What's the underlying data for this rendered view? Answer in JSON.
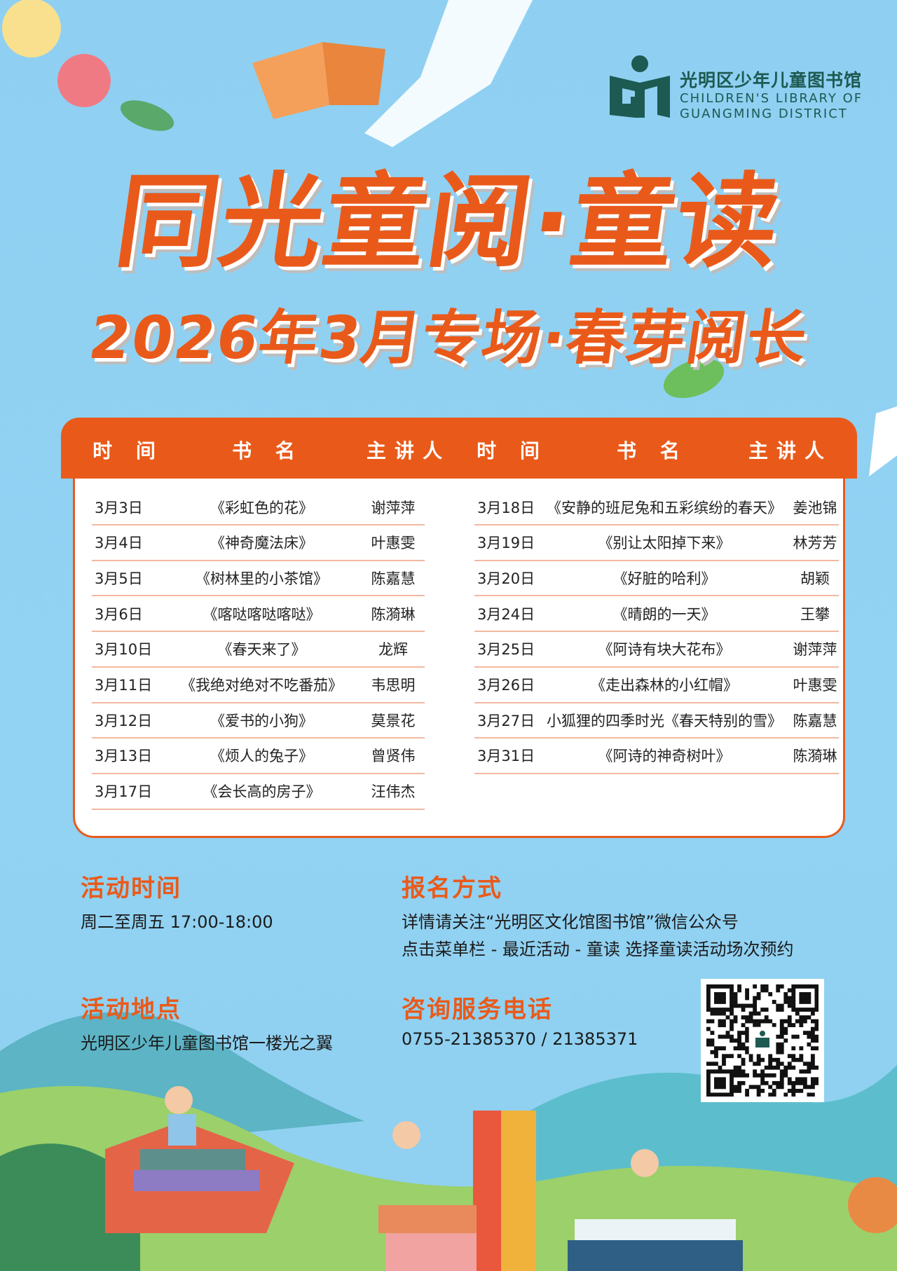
{
  "logo": {
    "name_cn": "光明区少年儿童图书馆",
    "name_en_line1": "CHILDREN'S LIBRARY OF",
    "name_en_line2": "GUANGMING DISTRICT",
    "color": "#1d5a52"
  },
  "title": "同光童阅·童读",
  "subtitle": "2026年3月专场·春芽阅长",
  "accent": "#e95a1a",
  "table": {
    "headers": [
      "时 间",
      "书 名",
      "主讲人",
      "时 间",
      "书 名",
      "主讲人"
    ],
    "left": [
      {
        "date": "3月3日",
        "book": "《彩虹色的花》",
        "speaker": "谢萍萍"
      },
      {
        "date": "3月4日",
        "book": "《神奇魔法床》",
        "speaker": "叶惠雯"
      },
      {
        "date": "3月5日",
        "book": "《树林里的小茶馆》",
        "speaker": "陈嘉慧"
      },
      {
        "date": "3月6日",
        "book": "《喀哒喀哒喀哒》",
        "speaker": "陈漪琳"
      },
      {
        "date": "3月10日",
        "book": "《春天来了》",
        "speaker": "龙辉"
      },
      {
        "date": "3月11日",
        "book": "《我绝对绝对不吃番茄》",
        "speaker": "韦思明"
      },
      {
        "date": "3月12日",
        "book": "《爱书的小狗》",
        "speaker": "莫景花"
      },
      {
        "date": "3月13日",
        "book": "《烦人的兔子》",
        "speaker": "曾贤伟"
      },
      {
        "date": "3月17日",
        "book": "《会长高的房子》",
        "speaker": "汪伟杰"
      }
    ],
    "right": [
      {
        "date": "3月18日",
        "book": "《安静的班尼兔和五彩缤纷的春天》",
        "speaker": "姜池锦"
      },
      {
        "date": "3月19日",
        "book": "《别让太阳掉下来》",
        "speaker": "林芳芳"
      },
      {
        "date": "3月20日",
        "book": "《好脏的哈利》",
        "speaker": "胡颖"
      },
      {
        "date": "3月24日",
        "book": "《晴朗的一天》",
        "speaker": "王攀"
      },
      {
        "date": "3月25日",
        "book": "《阿诗有块大花布》",
        "speaker": "谢萍萍"
      },
      {
        "date": "3月26日",
        "book": "《走出森林的小红帽》",
        "speaker": "叶惠雯"
      },
      {
        "date": "3月27日",
        "book": "小狐狸的四季时光《春天特别的雪》",
        "speaker": "陈嘉慧"
      },
      {
        "date": "3月31日",
        "book": "《阿诗的神奇树叶》",
        "speaker": "陈漪琳"
      }
    ]
  },
  "info": {
    "time_heading": "活动时间",
    "time_text": "周二至周五 17:00-18:00",
    "signup_heading": "报名方式",
    "signup_line1": "详情请关注“光明区文化馆图书馆”微信公众号",
    "signup_line2": "点击菜单栏 - 最近活动 - 童读  选择童读活动场次预约",
    "place_heading": "活动地点",
    "place_text": "光明区少年儿童图书馆一楼光之翼",
    "phone_heading": "咨询服务电话",
    "phone_text": "0755-21385370  /  21385371"
  }
}
